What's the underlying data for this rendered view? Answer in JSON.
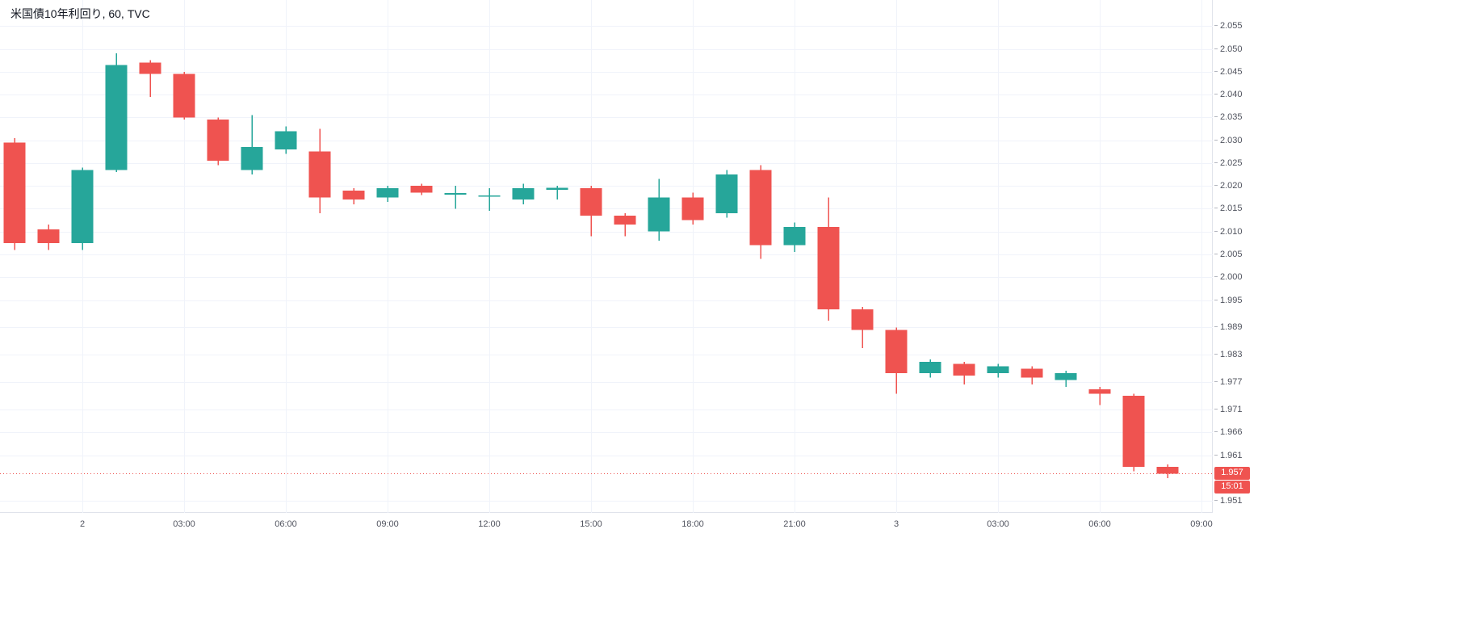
{
  "legend": {
    "title": "米国債10年利回り, 60, TVC"
  },
  "last": {
    "price": "1.957",
    "countdown": "15:01"
  },
  "colors": {
    "up": "#26a69a",
    "down": "#ef5350",
    "grid": "#f0f3fa",
    "axis_border": "#e0e3eb",
    "axis_text": "#50535e",
    "title_text": "#131722",
    "badge_bg": "#ef5350",
    "badge_text": "#ffffff",
    "last_price_line": "#ef5350"
  },
  "chart_data": {
    "type": "candlestick",
    "title": "米国債10年利回り",
    "interval": "60",
    "exchange": "TVC",
    "last_price": 1.957,
    "grid": true,
    "y_axis": {
      "visible_min": 1.9484,
      "visible_max": 2.0607,
      "tick_labels": [
        "2.055",
        "2.050",
        "2.045",
        "2.040",
        "2.035",
        "2.030",
        "2.025",
        "2.020",
        "2.015",
        "2.010",
        "2.005",
        "2.000",
        "1.995",
        "1.989",
        "1.983",
        "1.977",
        "1.971",
        "1.966",
        "1.961",
        "1.951"
      ]
    },
    "x_axis": {
      "labels": [
        {
          "text": "2",
          "t": 0
        },
        {
          "text": "03:00",
          "t": 3
        },
        {
          "text": "06:00",
          "t": 6
        },
        {
          "text": "09:00",
          "t": 9
        },
        {
          "text": "12:00",
          "t": 12
        },
        {
          "text": "15:00",
          "t": 15
        },
        {
          "text": "18:00",
          "t": 18
        },
        {
          "text": "21:00",
          "t": 21
        },
        {
          "text": "3",
          "t": 24
        },
        {
          "text": "03:00",
          "t": 27
        },
        {
          "text": "06:00",
          "t": 30
        },
        {
          "text": "09:00",
          "t": 33
        }
      ]
    },
    "candles": [
      {
        "t": -2,
        "o": 2.0295,
        "h": 2.0305,
        "l": 2.006,
        "c": 2.0075
      },
      {
        "t": -1,
        "o": 2.0105,
        "h": 2.0115,
        "l": 2.006,
        "c": 2.0075
      },
      {
        "t": 0,
        "o": 2.0075,
        "h": 2.024,
        "l": 2.006,
        "c": 2.0235
      },
      {
        "t": 1,
        "o": 2.0235,
        "h": 2.049,
        "l": 2.023,
        "c": 2.0465
      },
      {
        "t": 2,
        "o": 2.047,
        "h": 2.0475,
        "l": 2.0395,
        "c": 2.0445
      },
      {
        "t": 3,
        "o": 2.0445,
        "h": 2.045,
        "l": 2.0345,
        "c": 2.035
      },
      {
        "t": 4,
        "o": 2.0345,
        "h": 2.035,
        "l": 2.0245,
        "c": 2.0255
      },
      {
        "t": 5,
        "o": 2.0235,
        "h": 2.0355,
        "l": 2.0225,
        "c": 2.0285
      },
      {
        "t": 6,
        "o": 2.028,
        "h": 2.033,
        "l": 2.027,
        "c": 2.032
      },
      {
        "t": 7,
        "o": 2.0275,
        "h": 2.0325,
        "l": 2.014,
        "c": 2.0175
      },
      {
        "t": 8,
        "o": 2.019,
        "h": 2.0195,
        "l": 2.016,
        "c": 2.017
      },
      {
        "t": 9,
        "o": 2.0175,
        "h": 2.02,
        "l": 2.0165,
        "c": 2.0195
      },
      {
        "t": 10,
        "o": 2.02,
        "h": 2.0205,
        "l": 2.018,
        "c": 2.0185
      },
      {
        "t": 11,
        "o": 2.0181,
        "h": 2.02,
        "l": 2.015,
        "c": 2.0184
      },
      {
        "t": 12,
        "o": 2.0176,
        "h": 2.0195,
        "l": 2.0145,
        "c": 2.0179
      },
      {
        "t": 13,
        "o": 2.017,
        "h": 2.0205,
        "l": 2.016,
        "c": 2.0195
      },
      {
        "t": 14,
        "o": 2.0191,
        "h": 2.02,
        "l": 2.017,
        "c": 2.0196
      },
      {
        "t": 15,
        "o": 2.0195,
        "h": 2.02,
        "l": 2.009,
        "c": 2.0135
      },
      {
        "t": 16,
        "o": 2.0135,
        "h": 2.014,
        "l": 2.009,
        "c": 2.0115
      },
      {
        "t": 17,
        "o": 2.01,
        "h": 2.0215,
        "l": 2.008,
        "c": 2.0175
      },
      {
        "t": 18,
        "o": 2.0175,
        "h": 2.0185,
        "l": 2.0115,
        "c": 2.0125
      },
      {
        "t": 19,
        "o": 2.014,
        "h": 2.0235,
        "l": 2.013,
        "c": 2.0225
      },
      {
        "t": 20,
        "o": 2.0235,
        "h": 2.0245,
        "l": 2.004,
        "c": 2.007
      },
      {
        "t": 21,
        "o": 2.007,
        "h": 2.012,
        "l": 2.0055,
        "c": 2.011
      },
      {
        "t": 22,
        "o": 2.011,
        "h": 2.0175,
        "l": 1.9905,
        "c": 1.993
      },
      {
        "t": 23,
        "o": 1.993,
        "h": 1.9935,
        "l": 1.9845,
        "c": 1.9885
      },
      {
        "t": 24,
        "o": 1.9885,
        "h": 1.989,
        "l": 1.9745,
        "c": 1.979
      },
      {
        "t": 25,
        "o": 1.979,
        "h": 1.982,
        "l": 1.978,
        "c": 1.9815
      },
      {
        "t": 26,
        "o": 1.981,
        "h": 1.9815,
        "l": 1.9765,
        "c": 1.9785
      },
      {
        "t": 27,
        "o": 1.979,
        "h": 1.981,
        "l": 1.978,
        "c": 1.9805
      },
      {
        "t": 28,
        "o": 1.98,
        "h": 1.9805,
        "l": 1.9765,
        "c": 1.978
      },
      {
        "t": 29,
        "o": 1.9775,
        "h": 1.9795,
        "l": 1.976,
        "c": 1.979
      },
      {
        "t": 30,
        "o": 1.9755,
        "h": 1.976,
        "l": 1.972,
        "c": 1.9745
      },
      {
        "t": 31,
        "o": 1.974,
        "h": 1.9745,
        "l": 1.9575,
        "c": 1.9585
      },
      {
        "t": 32,
        "o": 1.9585,
        "h": 1.959,
        "l": 1.956,
        "c": 1.957
      }
    ]
  }
}
